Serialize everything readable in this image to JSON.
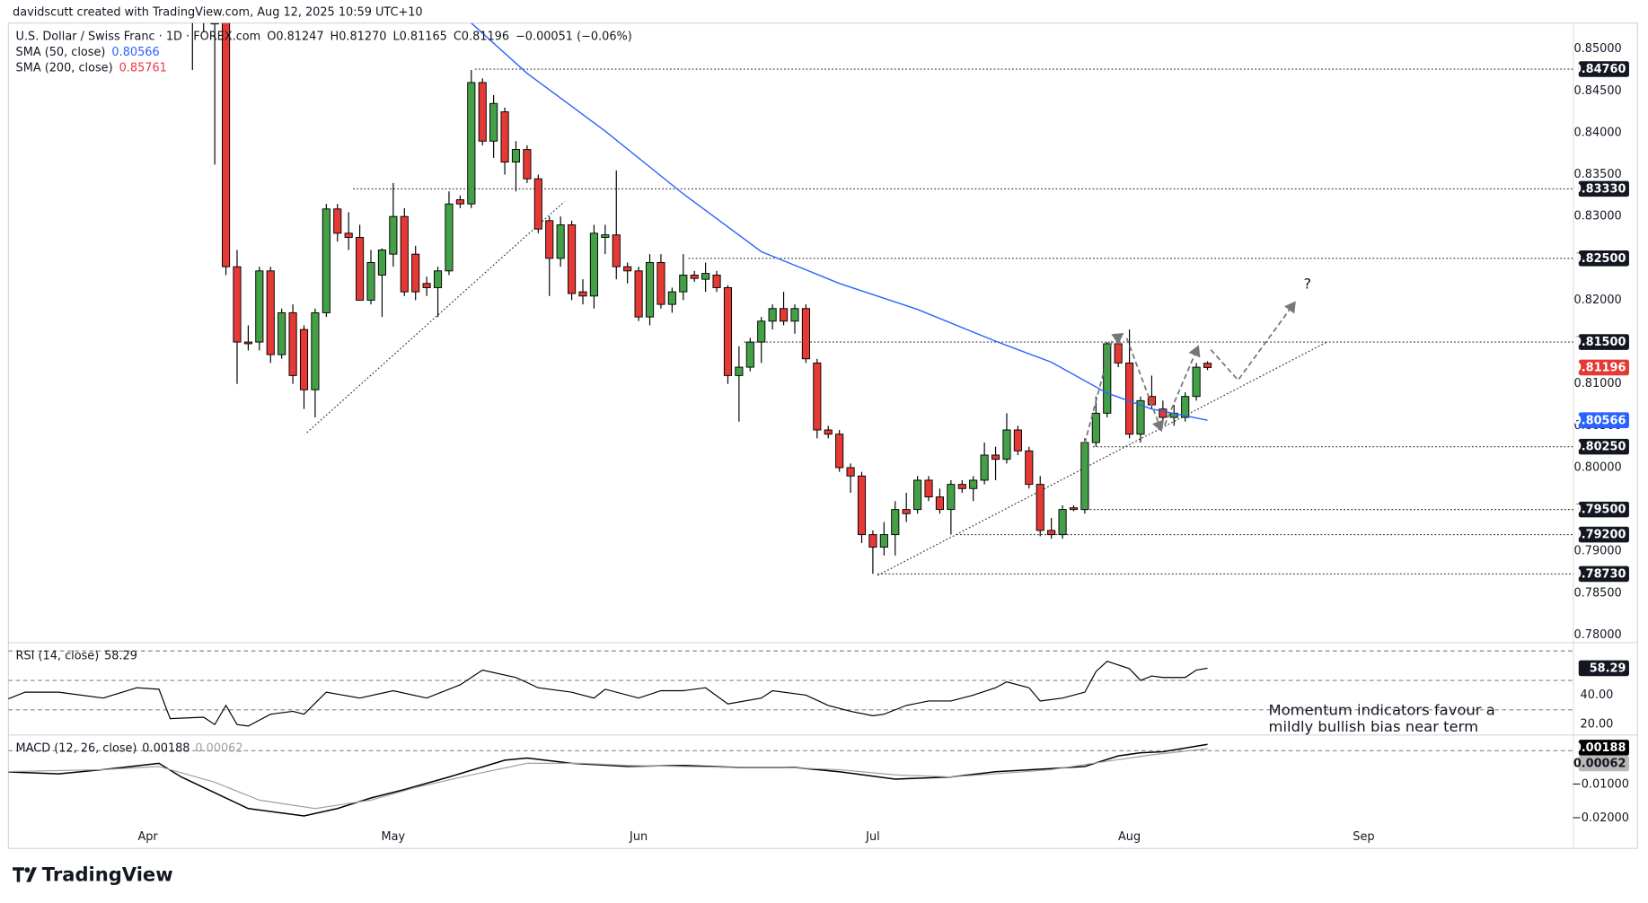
{
  "attribution": "davidscutt created with TradingView.com, Aug 12, 2025 10:59 UTC+10",
  "logo": "TradingView",
  "chart_data": {
    "type": "candlestick",
    "title": "U.S. Dollar / Swiss Franc · 1D · FOREX.com",
    "legend_values": [
      "O0.81247",
      "H0.81270",
      "L0.81165",
      "C0.81196",
      "−0.00051 (−0.06%)"
    ],
    "categories": [
      "Apr",
      null,
      null,
      null,
      null,
      null,
      null,
      null,
      null,
      null,
      null,
      null,
      null,
      null,
      null,
      null,
      null,
      null,
      null,
      null,
      null,
      null,
      "May",
      null,
      null,
      null,
      null,
      null,
      null,
      null,
      null,
      null,
      null,
      null,
      null,
      null,
      null,
      null,
      null,
      null,
      null,
      null,
      null,
      null,
      "Jun",
      null,
      null,
      null,
      null,
      null,
      null,
      null,
      null,
      null,
      null,
      null,
      null,
      null,
      null,
      null,
      null,
      null,
      null,
      null,
      null,
      "Jul",
      null,
      null,
      null,
      null,
      null,
      null,
      null,
      null,
      null,
      null,
      null,
      null,
      null,
      null,
      null,
      null,
      null,
      null,
      null,
      null,
      null,
      null,
      "Aug",
      null,
      null,
      null,
      null,
      null,
      null,
      null,
      null,
      null,
      null,
      null,
      null,
      null,
      null,
      null,
      null,
      null,
      null,
      null,
      null,
      "Sep"
    ],
    "xlim": [
      -12.5,
      127.8
    ],
    "ohlc": [
      null,
      null,
      null,
      null,
      [
        0.856,
        0.862,
        0.8475,
        0.859
      ],
      [
        0.859,
        0.862,
        0.852,
        0.8555
      ],
      [
        0.853,
        0.862,
        0.8362,
        0.86
      ],
      [
        0.86,
        0.862,
        0.823,
        0.824
      ],
      [
        0.824,
        0.826,
        0.81,
        0.815
      ],
      [
        0.815,
        0.817,
        0.814,
        0.8148
      ],
      [
        0.815,
        0.824,
        0.814,
        0.8235
      ],
      [
        0.8235,
        0.824,
        0.8125,
        0.8135
      ],
      [
        0.8135,
        0.819,
        0.813,
        0.8185
      ],
      [
        0.8185,
        0.8195,
        0.81,
        0.811
      ],
      [
        0.8165,
        0.817,
        0.807,
        0.8093
      ],
      [
        0.8093,
        0.819,
        0.806,
        0.8185
      ],
      [
        0.8185,
        0.8315,
        0.818,
        0.8309
      ],
      [
        0.8309,
        0.8315,
        0.827,
        0.828
      ],
      [
        0.828,
        0.8305,
        0.826,
        0.8275
      ],
      [
        0.8275,
        0.829,
        0.82,
        0.82
      ],
      [
        0.82,
        0.826,
        0.8195,
        0.8245
      ],
      [
        0.823,
        0.8262,
        0.818,
        0.826
      ],
      [
        0.8255,
        0.834,
        0.824,
        0.83
      ],
      [
        0.83,
        0.831,
        0.8205,
        0.821
      ],
      [
        0.8255,
        0.8265,
        0.82,
        0.821
      ],
      [
        0.822,
        0.8228,
        0.8205,
        0.8215
      ],
      [
        0.8215,
        0.824,
        0.818,
        0.8235
      ],
      [
        0.8235,
        0.833,
        0.823,
        0.8315
      ],
      [
        0.832,
        0.8325,
        0.831,
        0.8315
      ],
      [
        0.8315,
        0.8475,
        0.831,
        0.846
      ],
      [
        0.846,
        0.8465,
        0.8385,
        0.839
      ],
      [
        0.839,
        0.8445,
        0.837,
        0.8435
      ],
      [
        0.8425,
        0.843,
        0.835,
        0.8365
      ],
      [
        0.8365,
        0.839,
        0.833,
        0.838
      ],
      [
        0.838,
        0.8385,
        0.834,
        0.8345
      ],
      [
        0.8345,
        0.835,
        0.828,
        0.8285
      ],
      [
        0.8295,
        0.83,
        0.8205,
        0.825
      ],
      [
        0.825,
        0.83,
        0.824,
        0.829
      ],
      [
        0.829,
        0.8295,
        0.82,
        0.8208
      ],
      [
        0.821,
        0.8225,
        0.8195,
        0.8205
      ],
      [
        0.8205,
        0.829,
        0.819,
        0.828
      ],
      [
        0.8275,
        0.829,
        0.8255,
        0.8278
      ],
      [
        0.8278,
        0.8355,
        0.8225,
        0.824
      ],
      [
        0.824,
        0.8245,
        0.822,
        0.8235
      ],
      [
        0.8235,
        0.824,
        0.8175,
        0.818
      ],
      [
        0.818,
        0.8255,
        0.817,
        0.8245
      ],
      [
        0.8245,
        0.8255,
        0.819,
        0.8195
      ],
      [
        0.8195,
        0.8215,
        0.8185,
        0.821
      ],
      [
        0.821,
        0.8255,
        0.82,
        0.823
      ],
      [
        0.823,
        0.8235,
        0.8222,
        0.8226
      ],
      [
        0.8225,
        0.8245,
        0.821,
        0.8232
      ],
      [
        0.823,
        0.8235,
        0.821,
        0.8215
      ],
      [
        0.8215,
        0.8218,
        0.81,
        0.811
      ],
      [
        0.811,
        0.8145,
        0.8055,
        0.812
      ],
      [
        0.812,
        0.8155,
        0.8115,
        0.815
      ],
      [
        0.815,
        0.818,
        0.8125,
        0.8175
      ],
      [
        0.8175,
        0.8195,
        0.8165,
        0.819
      ],
      [
        0.819,
        0.821,
        0.817,
        0.8175
      ],
      [
        0.8175,
        0.8195,
        0.816,
        0.819
      ],
      [
        0.819,
        0.8195,
        0.8125,
        0.813
      ],
      [
        0.8125,
        0.813,
        0.8035,
        0.8045
      ],
      [
        0.8045,
        0.805,
        0.8035,
        0.804
      ],
      [
        0.804,
        0.8045,
        0.7995,
        0.8
      ],
      [
        0.8,
        0.8005,
        0.797,
        0.799
      ],
      [
        0.799,
        0.7995,
        0.791,
        0.792
      ],
      [
        0.792,
        0.7925,
        0.7873,
        0.7905
      ],
      [
        0.7905,
        0.7935,
        0.7895,
        0.792
      ],
      [
        0.792,
        0.796,
        0.7895,
        0.795
      ],
      [
        0.795,
        0.797,
        0.7935,
        0.7945
      ],
      [
        0.795,
        0.799,
        0.7945,
        0.7985
      ],
      [
        0.7985,
        0.799,
        0.796,
        0.7965
      ],
      [
        0.7965,
        0.7975,
        0.7945,
        0.795
      ],
      [
        0.795,
        0.7985,
        0.792,
        0.798
      ],
      [
        0.798,
        0.7985,
        0.797,
        0.7975
      ],
      [
        0.7975,
        0.799,
        0.796,
        0.7985
      ],
      [
        0.7985,
        0.803,
        0.798,
        0.8015
      ],
      [
        0.8015,
        0.8025,
        0.7985,
        0.801
      ],
      [
        0.801,
        0.8065,
        0.8005,
        0.8045
      ],
      [
        0.8045,
        0.805,
        0.8015,
        0.802
      ],
      [
        0.802,
        0.8025,
        0.7975,
        0.798
      ],
      [
        0.798,
        0.799,
        0.7918,
        0.7925
      ],
      [
        0.7925,
        0.794,
        0.7915,
        0.792
      ],
      [
        0.792,
        0.7955,
        0.7915,
        0.795
      ],
      [
        0.7952,
        0.7955,
        0.7948,
        0.795
      ],
      [
        0.795,
        0.8035,
        0.7945,
        0.803
      ],
      [
        0.803,
        0.8085,
        0.8025,
        0.8065
      ],
      [
        0.8065,
        0.815,
        0.806,
        0.8148
      ],
      [
        0.8148,
        0.815,
        0.812,
        0.8125
      ],
      [
        0.8125,
        0.8165,
        0.8035,
        0.804
      ],
      [
        0.804,
        0.8085,
        0.803,
        0.808
      ],
      [
        0.8085,
        0.811,
        0.807,
        0.8075
      ],
      [
        0.807,
        0.808,
        0.8055,
        0.806
      ],
      [
        0.806,
        0.8075,
        0.805,
        0.8065
      ],
      [
        0.806,
        0.809,
        0.8055,
        0.8085
      ],
      [
        0.8085,
        0.8125,
        0.808,
        0.812
      ],
      [
        0.81247,
        0.8127,
        0.81165,
        0.81196
      ],
      null,
      null,
      null,
      null,
      null,
      null,
      null,
      null,
      null,
      null,
      null,
      null,
      null,
      null
    ],
    "up_color": "#43a047",
    "down_color": "#e53935",
    "border_color": "#000000",
    "ylim": [
      0.7791,
      0.8531
    ],
    "yticks": [
      {
        "value": 0.78,
        "label": "0.78000"
      },
      {
        "value": 0.785,
        "label": "0.78500"
      },
      {
        "value": 0.79,
        "label": "0.79000"
      },
      {
        "value": 0.795,
        "label": "0.79500"
      },
      {
        "value": 0.8,
        "label": "0.80000"
      },
      {
        "value": 0.805,
        "label": "0.80500"
      },
      {
        "value": 0.81,
        "label": "0.81000"
      },
      {
        "value": 0.815,
        "label": "0.81500"
      },
      {
        "value": 0.82,
        "label": "0.82000"
      },
      {
        "value": 0.825,
        "label": "0.82500"
      },
      {
        "value": 0.83,
        "label": "0.83000"
      },
      {
        "value": 0.835,
        "label": "0.83500"
      },
      {
        "value": 0.84,
        "label": "0.84000"
      },
      {
        "value": 0.845,
        "label": "0.84500"
      },
      {
        "value": 0.85,
        "label": "0.85000"
      }
    ],
    "grid": false,
    "levels": [
      {
        "value": 0.8476,
        "label": "0.84760"
      },
      {
        "value": 0.8333,
        "label": "0.83330"
      },
      {
        "value": 0.825,
        "label": "0.82500"
      },
      {
        "value": 0.815,
        "label": "0.81500"
      },
      {
        "value": 0.8025,
        "label": "0.80250"
      },
      {
        "value": 0.795,
        "label": "0.79500"
      },
      {
        "value": 0.792,
        "label": "0.79200"
      },
      {
        "value": 0.7873,
        "label": "0.78730"
      }
    ],
    "sma": [
      {
        "name": "SMA (50, close)",
        "color": "#2962ff",
        "x": [
          29,
          34,
          41,
          48,
          55,
          62,
          69,
          76,
          81,
          86,
          90,
          95
        ],
        "values": [
          0.8531,
          0.8471,
          0.8402,
          0.8327,
          0.8258,
          0.822,
          0.8189,
          0.8151,
          0.8126,
          0.8089,
          0.807,
          0.80566
        ]
      },
      {
        "name": "SMA (200, close)",
        "color": "#f23645",
        "last": 0.85761
      }
    ],
    "annotations": {
      "question": "?",
      "note": [
        "Momentum indicators  favour a",
        "mildly bullish bias near term"
      ]
    },
    "rsi": {
      "name": "RSI (14, close)",
      "color": "#000000",
      "ylim": [
        12.9,
        75.7
      ],
      "yticks": [
        {
          "value": 40,
          "label": "40.00"
        },
        {
          "value": 20,
          "label": "20.00"
        }
      ],
      "bands": [
        70,
        50,
        30
      ],
      "x": [
        -13,
        -11,
        -8,
        -4,
        -1,
        1,
        2,
        5,
        6,
        7,
        8,
        9,
        11,
        13,
        14,
        16,
        19,
        22,
        25,
        28,
        30,
        33,
        35,
        38,
        40,
        41,
        44,
        46,
        48,
        50,
        52,
        55,
        56,
        59,
        61,
        63,
        65,
        66,
        68,
        70,
        72,
        74,
        76,
        77,
        79,
        80,
        82,
        84,
        85,
        86,
        88,
        89,
        90,
        91,
        93,
        94,
        95
      ],
      "values": [
        36,
        42,
        42,
        38,
        45,
        44,
        24,
        25,
        20,
        33,
        20,
        19,
        27,
        29,
        27,
        42,
        38,
        43,
        38,
        47,
        57,
        52,
        45,
        42,
        38,
        44,
        38,
        43,
        43,
        45,
        34,
        38,
        43,
        40,
        33,
        29,
        26,
        27,
        33,
        36,
        36,
        40,
        45,
        49,
        45,
        36,
        38,
        42,
        56,
        63,
        58,
        50,
        53,
        52,
        52,
        57,
        58.29
      ]
    },
    "macd": {
      "name": "MACD (12, 26, close)",
      "ylim": [
        -0.0281,
        0.0031
      ],
      "yticks": [
        {
          "value": -0.01,
          "label": "−0.01000"
        },
        {
          "value": -0.02,
          "label": "−0.02000"
        }
      ],
      "baseline": 0,
      "series": [
        {
          "color": "#000000",
          "x": [
            -13,
            -8,
            -4,
            1,
            3,
            6,
            9,
            14,
            17,
            20,
            23,
            27,
            32,
            34,
            38,
            43,
            48,
            53,
            58,
            62,
            67,
            72,
            76,
            81,
            84,
            87,
            89,
            91,
            95
          ],
          "values": [
            -0.00625,
            -0.00688,
            -0.00563,
            -0.00375,
            -0.00781,
            -0.0125,
            -0.01719,
            -0.01938,
            -0.01719,
            -0.01406,
            -0.01156,
            -0.00781,
            -0.00281,
            -0.00219,
            -0.00375,
            -0.00469,
            -0.00438,
            -0.005,
            -0.005,
            -0.00625,
            -0.00844,
            -0.00781,
            -0.00625,
            -0.00531,
            -0.00469,
            -0.00156,
            -0.00063,
            -0.00031,
            0.00188
          ]
        },
        {
          "color": "#a0a0a0",
          "x": [
            -13,
            -4,
            1,
            6,
            10,
            15,
            20,
            24,
            29,
            34,
            39,
            43,
            53,
            57,
            62,
            67,
            72,
            76,
            81,
            86,
            90,
            95
          ],
          "values": [
            -0.00625,
            -0.00563,
            -0.00469,
            -0.00938,
            -0.01469,
            -0.01719,
            -0.01469,
            -0.01094,
            -0.00719,
            -0.00375,
            -0.00375,
            -0.00438,
            -0.005,
            -0.005,
            -0.00563,
            -0.00719,
            -0.00781,
            -0.00688,
            -0.00563,
            -0.00313,
            -0.00125,
            0.00062
          ]
        }
      ]
    }
  }
}
